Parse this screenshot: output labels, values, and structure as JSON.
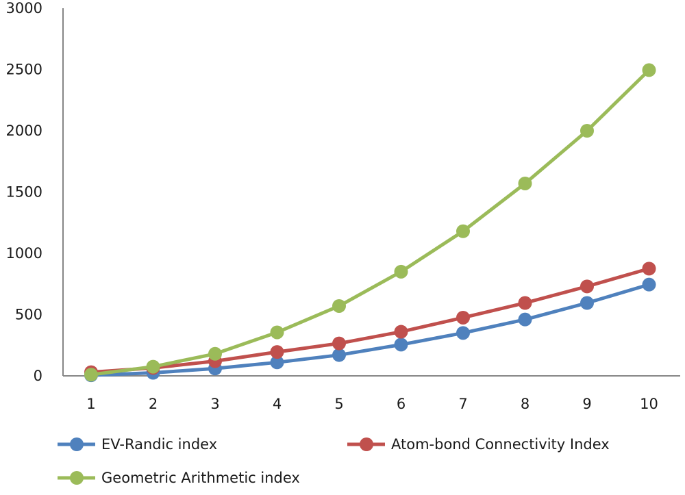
{
  "chart_data": {
    "type": "line",
    "title": "",
    "xlabel": "",
    "ylabel": "",
    "x": [
      1,
      2,
      3,
      4,
      5,
      6,
      7,
      8,
      9,
      10
    ],
    "ylim": [
      0,
      3000
    ],
    "yticks": [
      0,
      500,
      1000,
      1500,
      2000,
      2500,
      3000
    ],
    "grid": false,
    "legend_position": "bottom",
    "series": [
      {
        "name": "EV-Randic index",
        "color": "#4f81bd",
        "values": [
          5,
          25,
          60,
          110,
          170,
          255,
          350,
          460,
          595,
          745
        ]
      },
      {
        "name": "Atom-bond Connectivity Index",
        "color": "#c0504d",
        "values": [
          30,
          65,
          120,
          195,
          265,
          360,
          475,
          595,
          730,
          875
        ]
      },
      {
        "name": "Geometric Arithmetic index",
        "color": "#9bbb59",
        "values": [
          10,
          75,
          180,
          355,
          570,
          850,
          1180,
          1570,
          2000,
          2495
        ]
      }
    ]
  }
}
